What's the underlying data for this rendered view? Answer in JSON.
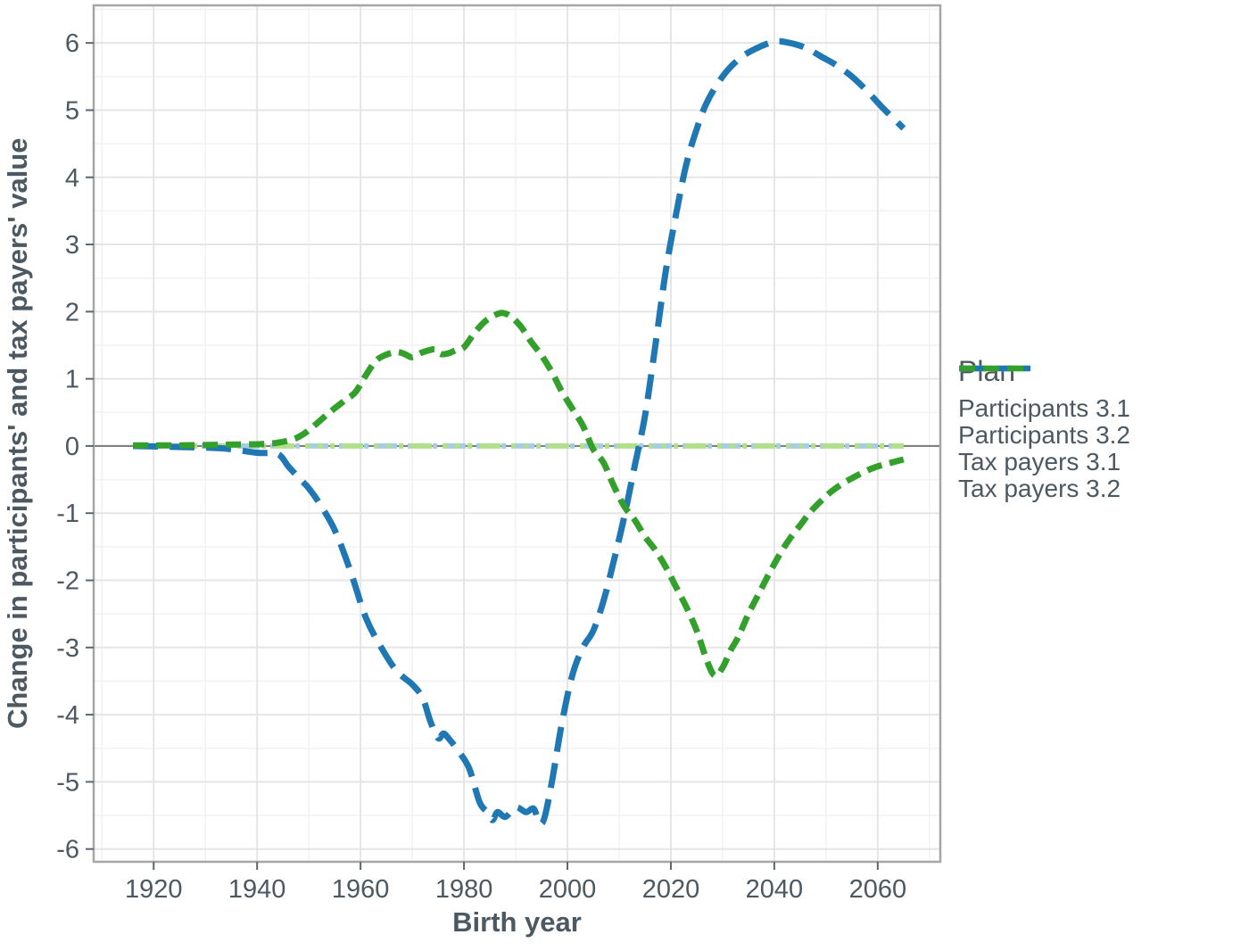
{
  "chart_data": {
    "type": "line",
    "xlabel": "Birth year",
    "ylabel": "Change in participants' and tax payers' value",
    "legend_title": "Plan",
    "legend_position": "right",
    "grid": "on",
    "xlim": [
      1908.4,
      2072.1
    ],
    "ylim": [
      -6.19,
      6.56
    ],
    "x_ticks": [
      1920,
      1940,
      1960,
      1980,
      2000,
      2020,
      2040,
      2060
    ],
    "x_minor_ticks": [
      1910,
      1930,
      1950,
      1970,
      1990,
      2010,
      2030,
      2050,
      2070
    ],
    "y_ticks": [
      -6,
      -5,
      -4,
      -3,
      -2,
      -1,
      0,
      1,
      2,
      3,
      4,
      5,
      6
    ],
    "y_minor_ticks": [
      -5.5,
      -4.5,
      -3.5,
      -2.5,
      -1.5,
      -0.5,
      0.5,
      1.5,
      2.5,
      3.5,
      4.5,
      5.5,
      6.5
    ],
    "zero_line": 0,
    "colors": {
      "text": "#4c5862",
      "grid_major": "#e5e5e5",
      "grid_minor": "#f2f2f2",
      "panel_border": "#a6a6a6",
      "zero_line": "#808080",
      "tick_mark": "#5b6670",
      "background": "#ffffff"
    },
    "series": [
      {
        "name": "Participants 3.1",
        "color": "#a6cee3",
        "linetype": "dot-dot-dot-longdash",
        "dasharray": "5 9 5 9 5 8 24 12",
        "dashoffset": 0,
        "width": 6,
        "x": [
          1916,
          2065
        ],
        "y": [
          0,
          0
        ]
      },
      {
        "name": "Participants 3.2",
        "color": "#b2df8a",
        "linetype": "dot-dot-dot-longdash",
        "dasharray": "5 9 5 9 5 8 24 12",
        "dashoffset": 38,
        "width": 6,
        "x": [
          1916,
          2065
        ],
        "y": [
          0,
          0
        ]
      },
      {
        "name": "Tax payers 3.1",
        "color": "#1f78b4",
        "linetype": "longdash",
        "dasharray": "28 13",
        "dashoffset": 0,
        "width": 7,
        "x": [
          1916,
          1922,
          1928,
          1934,
          1940,
          1944,
          1946,
          1948,
          1950,
          1952,
          1955,
          1958,
          1961,
          1964,
          1967,
          1970,
          1972,
          1973.5,
          1975,
          1976,
          1977,
          1979,
          1981,
          1983,
          1984.5,
          1985.5,
          1986.5,
          1988,
          1990,
          1992,
          1993.5,
          1994.5,
          1995.5,
          1997,
          1999,
          2001,
          2003,
          2005,
          2007,
          2009,
          2011,
          2013,
          2015,
          2017,
          2019,
          2021,
          2023,
          2025,
          2027,
          2030,
          2033,
          2036,
          2040,
          2043,
          2046,
          2049,
          2052,
          2055,
          2058,
          2061,
          2065
        ],
        "y": [
          0,
          -0.01,
          -0.02,
          -0.04,
          -0.1,
          -0.12,
          -0.3,
          -0.47,
          -0.63,
          -0.85,
          -1.25,
          -1.85,
          -2.55,
          -3.0,
          -3.35,
          -3.55,
          -3.75,
          -4.1,
          -4.35,
          -4.28,
          -4.35,
          -4.55,
          -4.8,
          -5.3,
          -5.45,
          -5.57,
          -5.45,
          -5.52,
          -5.38,
          -5.45,
          -5.4,
          -5.6,
          -5.55,
          -5.0,
          -4.1,
          -3.4,
          -3.0,
          -2.75,
          -2.3,
          -1.7,
          -1.05,
          -0.3,
          0.45,
          1.5,
          2.6,
          3.45,
          4.2,
          4.72,
          5.12,
          5.5,
          5.75,
          5.9,
          6.02,
          6.0,
          5.93,
          5.8,
          5.67,
          5.5,
          5.28,
          5.03,
          4.73
        ]
      },
      {
        "name": "Tax payers 3.2",
        "color": "#33a02c",
        "linetype": "dash",
        "dasharray": "17 9",
        "dashoffset": 0,
        "width": 7,
        "x": [
          1916,
          1925,
          1935,
          1941,
          1944,
          1947,
          1949,
          1951,
          1954,
          1957,
          1959,
          1961,
          1963,
          1965,
          1967,
          1968.5,
          1970,
          1971.5,
          1973,
          1974.5,
          1975.5,
          1977,
          1978.5,
          1980,
          1982,
          1984,
          1986,
          1987.5,
          1989,
          1991,
          1993,
          1995,
          1997,
          1999,
          2001,
          2003,
          2005,
          2007,
          2009,
          2011,
          2013,
          2015,
          2017,
          2019,
          2021,
          2023,
          2025,
          2027,
          2028.5,
          2030,
          2031.5,
          2033,
          2035,
          2037,
          2039,
          2041,
          2043,
          2045,
          2047,
          2049,
          2051,
          2053,
          2055,
          2057,
          2059,
          2061,
          2063,
          2065
        ],
        "y": [
          0.01,
          0.01,
          0.02,
          0.03,
          0.05,
          0.1,
          0.18,
          0.3,
          0.5,
          0.68,
          0.8,
          1.05,
          1.27,
          1.36,
          1.4,
          1.37,
          1.32,
          1.38,
          1.42,
          1.44,
          1.37,
          1.38,
          1.43,
          1.47,
          1.68,
          1.85,
          1.95,
          1.98,
          1.93,
          1.78,
          1.55,
          1.35,
          1.1,
          0.8,
          0.55,
          0.3,
          -0.05,
          -0.25,
          -0.6,
          -0.9,
          -1.1,
          -1.35,
          -1.55,
          -1.8,
          -2.1,
          -2.4,
          -2.75,
          -3.2,
          -3.42,
          -3.3,
          -3.05,
          -2.85,
          -2.5,
          -2.2,
          -1.9,
          -1.62,
          -1.38,
          -1.18,
          -0.98,
          -0.82,
          -0.68,
          -0.57,
          -0.48,
          -0.4,
          -0.33,
          -0.28,
          -0.24,
          -0.2
        ]
      }
    ]
  },
  "legend": {
    "title": "Plan",
    "items": [
      {
        "label": "Participants 3.1",
        "color": "#a6cee3",
        "dasharray": "6 10 6 10 6 9 28 20",
        "dashoffset": 0
      },
      {
        "label": "Participants 3.2",
        "color": "#b2df8a",
        "dasharray": "6 10 6 10 6 9 28 20",
        "dashoffset": 45
      },
      {
        "label": "Tax payers 3.1",
        "color": "#1f78b4",
        "dasharray": "30 12 18 12",
        "dashoffset": 0
      },
      {
        "label": "Tax payers 3.2",
        "color": "#33a02c",
        "dasharray": "18 9",
        "dashoffset": 0
      }
    ]
  }
}
